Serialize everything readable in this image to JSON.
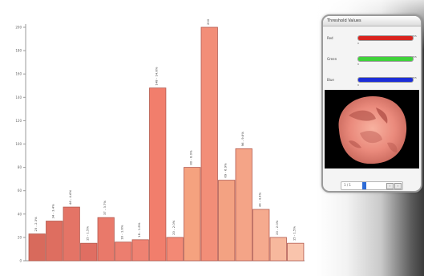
{
  "chart_data": {
    "type": "bar",
    "ylim": [
      0,
      200
    ],
    "y_ticks": [
      "0",
      "20",
      "40",
      "60",
      "80",
      "100",
      "120",
      "140",
      "160",
      "180",
      "200"
    ],
    "values": [
      23,
      34,
      46,
      15,
      37,
      16,
      18,
      148,
      20,
      80,
      200,
      69,
      96,
      44,
      20,
      15
    ],
    "labels": [
      "23 - 2.3%",
      "34 - 3.4%",
      "46 - 4.6%",
      "15 - 1.5%",
      "37 - 3.7%",
      "16 - 1.6%",
      "18 - 1.8%",
      "148 - 14.8%",
      "20 - 2.0%",
      "80 - 8.0%",
      "200",
      "69 - 6.9%",
      "96 - 9.6%",
      "44 - 4.4%",
      "20 - 2.0%",
      "15 - 1.5%"
    ],
    "colors": [
      "#d86a5c",
      "#de6e60",
      "#e47466",
      "#e06e62",
      "#e9796a",
      "#ec7e6f",
      "#ef8272",
      "#f17e6c",
      "#f38975",
      "#f5a27f",
      "#f28e78",
      "#f3a282",
      "#f4a487",
      "#f5aa8e",
      "#f7b89d",
      "#f9c4ac"
    ]
  },
  "panel": {
    "title": "Threshold Values",
    "sliders": [
      {
        "label": "Red",
        "min": "0",
        "max": "255",
        "color": "#d9241f",
        "fill": 1.0
      },
      {
        "label": "Green",
        "min": "0",
        "max": "255",
        "color": "#3fd23a",
        "fill": 1.0
      },
      {
        "label": "Blue",
        "min": "0",
        "max": "255",
        "color": "#1d2ed7",
        "fill": 1.0
      }
    ],
    "page": "1 / 1"
  }
}
